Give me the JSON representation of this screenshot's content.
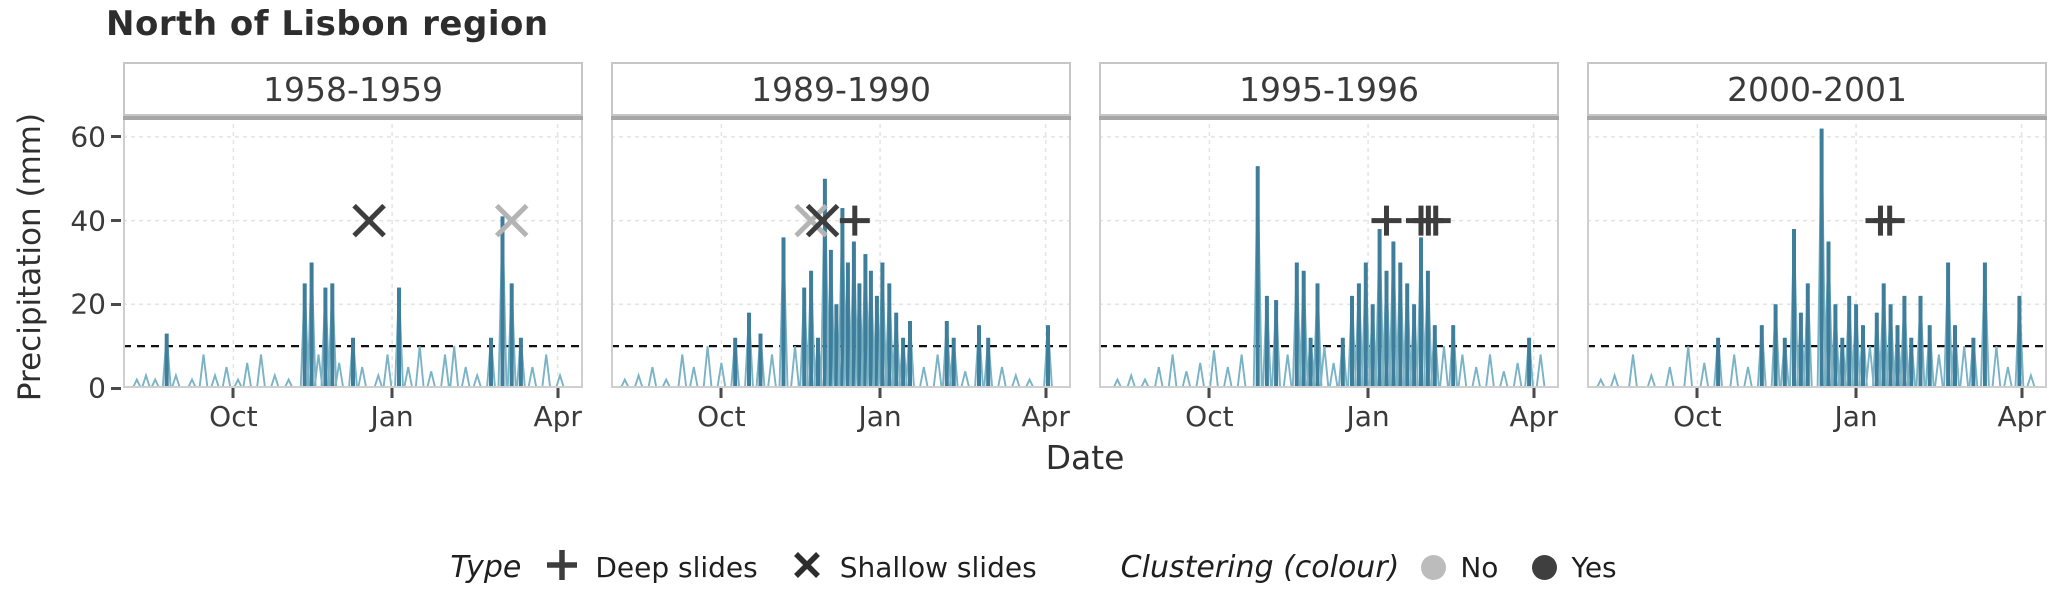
{
  "title": "North of Lisbon region",
  "legend": {
    "type_title": "Type",
    "items": [
      {
        "glyph": "plus",
        "label": "Deep slides"
      },
      {
        "glyph": "cross",
        "label": "Shallow slides"
      }
    ],
    "clustering_title": "Clustering (colour)",
    "clustering_items": [
      {
        "color": "#bcbcbc",
        "label": "No"
      },
      {
        "color": "#3f3f3f",
        "label": "Yes"
      }
    ]
  },
  "chart_data": {
    "type": "bar",
    "title": "North of Lisbon region",
    "xlabel": "Date",
    "ylabel": "Precipitation (mm)",
    "ylim": [
      0,
      65
    ],
    "yticks": [
      0,
      20,
      40,
      60
    ],
    "xticks": [
      {
        "label": "Oct",
        "pos": 0.24
      },
      {
        "label": "Jan",
        "pos": 0.585
      },
      {
        "label": "Apr",
        "pos": 0.945
      }
    ],
    "threshold_mm": 10,
    "grid": true,
    "colors": {
      "bar_light": "#7ab3c6",
      "bar_dark": "#3e7e9b",
      "clustered": "#3d3d3d",
      "not_clustered": "#b4b4b4",
      "threshold": "#111111",
      "panel_border": "#cfcfcf",
      "panel_top": "#a6a6a6"
    },
    "facets": [
      {
        "label": "1958-1959",
        "precip": [
          [
            0.03,
            2
          ],
          [
            0.05,
            3
          ],
          [
            0.07,
            2
          ],
          [
            0.095,
            13
          ],
          [
            0.115,
            3
          ],
          [
            0.15,
            2
          ],
          [
            0.175,
            8
          ],
          [
            0.2,
            3
          ],
          [
            0.225,
            5
          ],
          [
            0.25,
            2
          ],
          [
            0.27,
            6
          ],
          [
            0.3,
            8
          ],
          [
            0.33,
            3
          ],
          [
            0.36,
            2
          ],
          [
            0.395,
            25
          ],
          [
            0.41,
            30
          ],
          [
            0.425,
            8
          ],
          [
            0.44,
            24
          ],
          [
            0.455,
            25
          ],
          [
            0.47,
            6
          ],
          [
            0.5,
            12
          ],
          [
            0.52,
            5
          ],
          [
            0.555,
            3
          ],
          [
            0.575,
            8
          ],
          [
            0.6,
            24
          ],
          [
            0.62,
            5
          ],
          [
            0.645,
            10
          ],
          [
            0.67,
            4
          ],
          [
            0.7,
            8
          ],
          [
            0.72,
            10
          ],
          [
            0.745,
            5
          ],
          [
            0.77,
            3
          ],
          [
            0.8,
            12
          ],
          [
            0.825,
            41
          ],
          [
            0.845,
            25
          ],
          [
            0.865,
            12
          ],
          [
            0.89,
            5
          ],
          [
            0.92,
            8
          ],
          [
            0.95,
            3
          ]
        ],
        "events": [
          {
            "type": "shallow",
            "clustered": true,
            "x": 0.535,
            "y": 40
          },
          {
            "type": "shallow",
            "clustered": false,
            "x": 0.845,
            "y": 40
          }
        ]
      },
      {
        "label": "1989-1990",
        "precip": [
          [
            0.03,
            2
          ],
          [
            0.06,
            3
          ],
          [
            0.09,
            5
          ],
          [
            0.12,
            2
          ],
          [
            0.155,
            8
          ],
          [
            0.18,
            5
          ],
          [
            0.21,
            10
          ],
          [
            0.24,
            6
          ],
          [
            0.27,
            12
          ],
          [
            0.3,
            18
          ],
          [
            0.325,
            13
          ],
          [
            0.35,
            8
          ],
          [
            0.375,
            36
          ],
          [
            0.4,
            10
          ],
          [
            0.42,
            24
          ],
          [
            0.435,
            28
          ],
          [
            0.45,
            12
          ],
          [
            0.465,
            50
          ],
          [
            0.478,
            33
          ],
          [
            0.49,
            20
          ],
          [
            0.503,
            43
          ],
          [
            0.515,
            30
          ],
          [
            0.528,
            35
          ],
          [
            0.54,
            25
          ],
          [
            0.553,
            32
          ],
          [
            0.565,
            28
          ],
          [
            0.578,
            22
          ],
          [
            0.59,
            30
          ],
          [
            0.605,
            25
          ],
          [
            0.62,
            18
          ],
          [
            0.635,
            12
          ],
          [
            0.65,
            16
          ],
          [
            0.68,
            5
          ],
          [
            0.71,
            8
          ],
          [
            0.73,
            16
          ],
          [
            0.745,
            12
          ],
          [
            0.77,
            4
          ],
          [
            0.8,
            15
          ],
          [
            0.82,
            12
          ],
          [
            0.85,
            5
          ],
          [
            0.88,
            3
          ],
          [
            0.91,
            2
          ],
          [
            0.95,
            15
          ]
        ],
        "events": [
          {
            "type": "shallow",
            "clustered": false,
            "x": 0.435,
            "y": 40
          },
          {
            "type": "shallow",
            "clustered": true,
            "x": 0.46,
            "y": 40
          },
          {
            "type": "deep",
            "clustered": true,
            "x": 0.53,
            "y": 40
          }
        ]
      },
      {
        "label": "1995-1996",
        "precip": [
          [
            0.04,
            2
          ],
          [
            0.07,
            3
          ],
          [
            0.1,
            2
          ],
          [
            0.13,
            5
          ],
          [
            0.16,
            8
          ],
          [
            0.19,
            4
          ],
          [
            0.22,
            6
          ],
          [
            0.25,
            9
          ],
          [
            0.28,
            5
          ],
          [
            0.31,
            8
          ],
          [
            0.345,
            53
          ],
          [
            0.365,
            22
          ],
          [
            0.385,
            21
          ],
          [
            0.41,
            8
          ],
          [
            0.43,
            30
          ],
          [
            0.445,
            28
          ],
          [
            0.46,
            12
          ],
          [
            0.475,
            25
          ],
          [
            0.49,
            10
          ],
          [
            0.51,
            6
          ],
          [
            0.53,
            12
          ],
          [
            0.55,
            22
          ],
          [
            0.565,
            25
          ],
          [
            0.58,
            30
          ],
          [
            0.595,
            20
          ],
          [
            0.61,
            38
          ],
          [
            0.625,
            28
          ],
          [
            0.64,
            35
          ],
          [
            0.655,
            30
          ],
          [
            0.67,
            25
          ],
          [
            0.685,
            20
          ],
          [
            0.7,
            36
          ],
          [
            0.715,
            28
          ],
          [
            0.73,
            15
          ],
          [
            0.75,
            10
          ],
          [
            0.77,
            15
          ],
          [
            0.79,
            8
          ],
          [
            0.82,
            5
          ],
          [
            0.85,
            8
          ],
          [
            0.88,
            4
          ],
          [
            0.91,
            6
          ],
          [
            0.935,
            12
          ],
          [
            0.96,
            8
          ]
        ],
        "events": [
          {
            "type": "deep",
            "clustered": true,
            "x": 0.625,
            "y": 40
          },
          {
            "type": "deep",
            "clustered": true,
            "x": 0.7,
            "y": 40
          },
          {
            "type": "deep",
            "clustered": true,
            "x": 0.716,
            "y": 40
          },
          {
            "type": "deep",
            "clustered": true,
            "x": 0.732,
            "y": 40
          }
        ]
      },
      {
        "label": "2000-2001",
        "precip": [
          [
            0.03,
            2
          ],
          [
            0.06,
            3
          ],
          [
            0.1,
            8
          ],
          [
            0.14,
            3
          ],
          [
            0.18,
            5
          ],
          [
            0.22,
            10
          ],
          [
            0.255,
            6
          ],
          [
            0.285,
            12
          ],
          [
            0.32,
            8
          ],
          [
            0.35,
            5
          ],
          [
            0.38,
            15
          ],
          [
            0.41,
            20
          ],
          [
            0.43,
            12
          ],
          [
            0.45,
            38
          ],
          [
            0.465,
            18
          ],
          [
            0.48,
            25
          ],
          [
            0.51,
            62
          ],
          [
            0.525,
            35
          ],
          [
            0.54,
            20
          ],
          [
            0.555,
            12
          ],
          [
            0.57,
            22
          ],
          [
            0.585,
            20
          ],
          [
            0.6,
            15
          ],
          [
            0.615,
            10
          ],
          [
            0.63,
            18
          ],
          [
            0.645,
            25
          ],
          [
            0.66,
            20
          ],
          [
            0.675,
            15
          ],
          [
            0.69,
            22
          ],
          [
            0.705,
            12
          ],
          [
            0.725,
            22
          ],
          [
            0.745,
            15
          ],
          [
            0.765,
            8
          ],
          [
            0.785,
            30
          ],
          [
            0.8,
            15
          ],
          [
            0.82,
            10
          ],
          [
            0.84,
            12
          ],
          [
            0.865,
            30
          ],
          [
            0.89,
            10
          ],
          [
            0.915,
            5
          ],
          [
            0.94,
            22
          ],
          [
            0.965,
            3
          ]
        ],
        "events": [
          {
            "type": "deep",
            "clustered": true,
            "x": 0.638,
            "y": 40
          },
          {
            "type": "deep",
            "clustered": true,
            "x": 0.658,
            "y": 40
          }
        ]
      }
    ]
  }
}
